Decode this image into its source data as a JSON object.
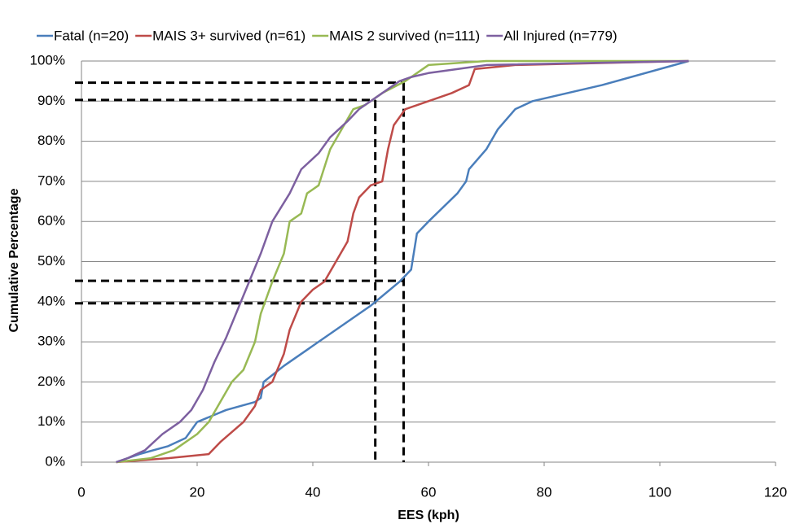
{
  "chart_data": {
    "type": "line",
    "xlabel": "EES (kph)",
    "ylabel": "Cumulative Percentage",
    "xlim": [
      0,
      120
    ],
    "xticks": [
      0,
      20,
      40,
      60,
      80,
      100,
      120
    ],
    "ylim": [
      0,
      100
    ],
    "yticks": [
      {
        "value": 0,
        "label": "0%"
      },
      {
        "value": 10,
        "label": "10%"
      },
      {
        "value": 20,
        "label": "20%"
      },
      {
        "value": 30,
        "label": "30%"
      },
      {
        "value": 40,
        "label": "40%"
      },
      {
        "value": 50,
        "label": "50%"
      },
      {
        "value": 60,
        "label": "60%"
      },
      {
        "value": 70,
        "label": "70%"
      },
      {
        "value": 80,
        "label": "80%"
      },
      {
        "value": 90,
        "label": "90%"
      },
      {
        "value": 100,
        "label": "100%"
      }
    ],
    "grid": true,
    "legend": "top",
    "series": [
      {
        "name": "Fatal (n=20)",
        "color": "#4a7ebb",
        "x": [
          6,
          10,
          15,
          18,
          20,
          25,
          30,
          31,
          31.5,
          35,
          40,
          45,
          50,
          55,
          57,
          58,
          60,
          65,
          66.5,
          67,
          70,
          72,
          75,
          78,
          90,
          105
        ],
        "values": [
          0,
          2,
          4,
          6,
          10,
          13,
          15,
          16,
          20,
          24,
          29,
          34,
          39,
          45,
          48,
          57,
          60,
          67,
          70,
          73,
          78,
          83,
          88,
          90,
          94,
          100
        ]
      },
      {
        "name": "MAIS 3+ survived (n=61)",
        "color": "#be4b48",
        "x": [
          6,
          15,
          22,
          24,
          28,
          30,
          31,
          33,
          35,
          36,
          38,
          40,
          42,
          44,
          46,
          47,
          48,
          50,
          52,
          53,
          54,
          56,
          60,
          64,
          67,
          68,
          75,
          105
        ],
        "values": [
          0,
          1,
          2,
          5,
          10,
          14,
          18,
          20,
          27,
          33,
          40,
          43,
          45,
          50,
          55,
          62,
          66,
          69,
          70,
          78,
          84,
          88,
          90,
          92,
          94,
          98,
          99,
          100
        ]
      },
      {
        "name": "MAIS 2 survived (n=111)",
        "color": "#98b954",
        "x": [
          6,
          12,
          16,
          20,
          22,
          24,
          26,
          28,
          30,
          31,
          33,
          35,
          36,
          38,
          39,
          41,
          43,
          45,
          47,
          49,
          52,
          56,
          58,
          60,
          70,
          105
        ],
        "values": [
          0,
          1,
          3,
          7,
          10,
          15,
          20,
          23,
          30,
          37,
          45,
          52,
          60,
          62,
          67,
          69,
          78,
          83,
          88,
          89,
          92,
          95,
          97,
          99,
          100,
          100
        ]
      },
      {
        "name": "All Injured (n=779)",
        "color": "#7d60a0",
        "x": [
          6,
          8,
          11,
          14,
          17,
          19,
          21,
          23,
          25,
          27,
          29,
          31,
          33,
          36,
          38,
          41,
          43,
          46,
          48,
          52,
          55,
          57,
          60,
          65,
          70,
          105
        ],
        "values": [
          0,
          1,
          3,
          7,
          10,
          13,
          18,
          25,
          31,
          38,
          45,
          52,
          60,
          67,
          73,
          77,
          81,
          85,
          88,
          92,
          95,
          96,
          97,
          98,
          99,
          100
        ]
      }
    ],
    "reference_lines": [
      {
        "x": 50.8,
        "y": [
          39.6,
          90.3
        ]
      },
      {
        "x": 55.7,
        "y": [
          45.2,
          94.6
        ]
      }
    ]
  }
}
